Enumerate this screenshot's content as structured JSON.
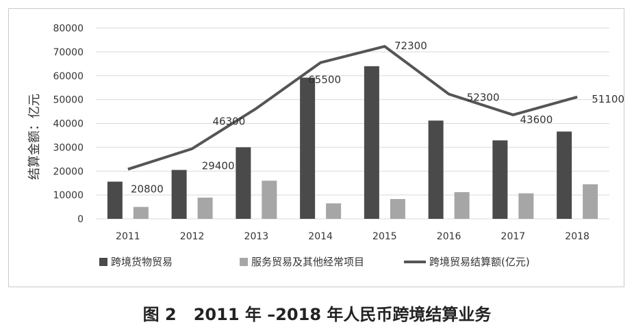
{
  "caption": "图 2   2011 年 –2018 年人民币跨境结算业务",
  "chart_data": {
    "type": "bar+line",
    "categories": [
      "2011",
      "2012",
      "2013",
      "2014",
      "2015",
      "2016",
      "2017",
      "2018"
    ],
    "ylabel": "结算金额：亿元",
    "ylim": [
      0,
      80000
    ],
    "yticks": [
      0,
      10000,
      20000,
      30000,
      40000,
      50000,
      60000,
      70000,
      80000
    ],
    "grid": true,
    "legend_position": "bottom",
    "series": [
      {
        "name": "跨境货物贸易",
        "type": "bar",
        "color": "#4a4a4a",
        "values": [
          15600,
          20500,
          30000,
          59200,
          64000,
          41200,
          32900,
          36600
        ]
      },
      {
        "name": "服务贸易及其他经常项目",
        "type": "bar",
        "color": "#a6a6a6",
        "values": [
          5000,
          8900,
          16000,
          6500,
          8300,
          11200,
          10700,
          14500
        ]
      },
      {
        "name": "跨境贸易结算额(亿元)",
        "type": "line",
        "color": "#555555",
        "values": [
          20800,
          29400,
          46300,
          65500,
          72300,
          52300,
          43600,
          51100
        ],
        "data_labels": [
          "20800",
          "29400",
          "46300",
          "65500",
          "72300",
          "52300",
          "43600",
          "51100"
        ]
      }
    ]
  }
}
